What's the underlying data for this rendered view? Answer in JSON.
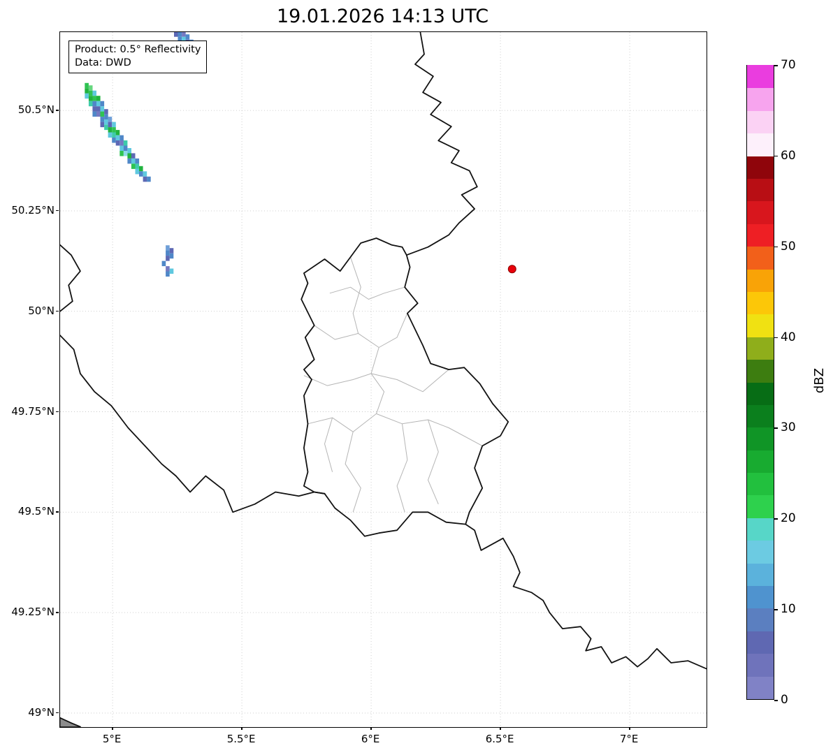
{
  "title": "19.01.2026 14:13 UTC",
  "annotation": {
    "product": "Product: 0.5° Reflectivity",
    "source": "Data: DWD"
  },
  "axes": {
    "lon_range": [
      4.797,
      7.297
    ],
    "lat_range": [
      48.965,
      50.695
    ],
    "x_ticks": [
      {
        "label": "5°E",
        "lon": 5.0
      },
      {
        "label": "5.5°E",
        "lon": 5.5
      },
      {
        "label": "6°E",
        "lon": 6.0
      },
      {
        "label": "6.5°E",
        "lon": 6.5
      },
      {
        "label": "7°E",
        "lon": 7.0
      }
    ],
    "y_ticks": [
      {
        "label": "50.5°N",
        "lat": 50.5
      },
      {
        "label": "50.25°N",
        "lat": 50.25
      },
      {
        "label": "50°N",
        "lat": 50.0
      },
      {
        "label": "49.75°N",
        "lat": 49.75
      },
      {
        "label": "49.5°N",
        "lat": 49.5
      },
      {
        "label": "49.25°N",
        "lat": 49.25
      },
      {
        "label": "49°N",
        "lat": 49.0
      }
    ]
  },
  "colorbar": {
    "label": "dBZ",
    "min": 0,
    "max": 70,
    "ticks": [
      0,
      10,
      20,
      30,
      40,
      50,
      60,
      70
    ],
    "segment_colors_bottom_to_top": [
      "#8082c6",
      "#6f73bb",
      "#5f68b2",
      "#5b7fc0",
      "#4f93cf",
      "#5bb2dc",
      "#6ccbe2",
      "#57d6c8",
      "#2ed14d",
      "#22c03e",
      "#18ab30",
      "#109526",
      "#0b7f1d",
      "#076d15",
      "#3d7d10",
      "#8fae1b",
      "#f0e112",
      "#fcc708",
      "#f9a307",
      "#f2601a",
      "#ee1f24",
      "#d8161d",
      "#b80e14",
      "#8f050b",
      "#fdf0fb",
      "#fbd2f4",
      "#f7a4ee",
      "#ea3ddf"
    ]
  },
  "map": {
    "radar_marker": {
      "lon": 6.545,
      "lat": 50.105,
      "color": "#e8000b",
      "edge": "#8b0000"
    },
    "country_borders": [
      [
        [
          6.19,
          50.695
        ],
        [
          6.205,
          50.64
        ],
        [
          6.17,
          50.615
        ],
        [
          6.24,
          50.585
        ],
        [
          6.2,
          50.545
        ],
        [
          6.27,
          50.52
        ],
        [
          6.23,
          50.49
        ],
        [
          6.31,
          50.46
        ],
        [
          6.26,
          50.425
        ],
        [
          6.34,
          50.4
        ],
        [
          6.31,
          50.37
        ],
        [
          6.38,
          50.35
        ],
        [
          6.41,
          50.31
        ],
        [
          6.35,
          50.29
        ],
        [
          6.4,
          50.255
        ],
        [
          6.34,
          50.22
        ],
        [
          6.3,
          50.19
        ],
        [
          6.22,
          50.16
        ],
        [
          6.137,
          50.14
        ]
      ],
      [
        [
          6.02,
          50.182
        ],
        [
          6.08,
          50.165
        ],
        [
          6.12,
          50.16
        ],
        [
          6.137,
          50.14
        ],
        [
          6.15,
          50.11
        ],
        [
          6.13,
          50.06
        ],
        [
          6.18,
          50.02
        ],
        [
          6.14,
          49.995
        ],
        [
          6.17,
          49.955
        ],
        [
          6.2,
          49.915
        ],
        [
          6.23,
          49.87
        ],
        [
          6.3,
          49.855
        ],
        [
          6.36,
          49.86
        ],
        [
          6.42,
          49.82
        ],
        [
          6.47,
          49.77
        ],
        [
          6.53,
          49.725
        ],
        [
          6.5,
          49.69
        ],
        [
          6.43,
          49.665
        ],
        [
          6.4,
          49.61
        ],
        [
          6.43,
          49.56
        ],
        [
          6.38,
          49.5
        ],
        [
          6.365,
          49.47
        ],
        [
          6.29,
          49.475
        ],
        [
          6.22,
          49.5
        ],
        [
          6.16,
          49.5
        ],
        [
          6.1,
          49.455
        ],
        [
          6.03,
          49.448
        ],
        [
          5.975,
          49.44
        ],
        [
          5.92,
          49.48
        ],
        [
          5.89,
          49.495
        ],
        [
          5.86,
          49.51
        ],
        [
          5.82,
          49.546
        ],
        [
          5.78,
          49.55
        ],
        [
          5.74,
          49.565
        ],
        [
          5.755,
          49.6
        ],
        [
          5.74,
          49.66
        ],
        [
          5.755,
          49.72
        ],
        [
          5.74,
          49.79
        ],
        [
          5.77,
          49.83
        ],
        [
          5.74,
          49.855
        ],
        [
          5.78,
          49.88
        ],
        [
          5.745,
          49.935
        ],
        [
          5.78,
          49.965
        ],
        [
          5.73,
          50.03
        ],
        [
          5.755,
          50.07
        ],
        [
          5.74,
          50.095
        ],
        [
          5.82,
          50.13
        ],
        [
          5.88,
          50.1
        ],
        [
          5.92,
          50.135
        ],
        [
          5.96,
          50.17
        ],
        [
          6.02,
          50.182
        ]
      ],
      [
        [
          4.797,
          49.94
        ],
        [
          4.85,
          49.905
        ],
        [
          4.875,
          49.845
        ],
        [
          4.93,
          49.8
        ],
        [
          4.995,
          49.765
        ],
        [
          5.06,
          49.71
        ],
        [
          5.125,
          49.665
        ],
        [
          5.19,
          49.62
        ],
        [
          5.245,
          49.59
        ],
        [
          5.3,
          49.55
        ],
        [
          5.36,
          49.59
        ],
        [
          5.43,
          49.555
        ],
        [
          5.465,
          49.5
        ],
        [
          5.55,
          49.52
        ],
        [
          5.63,
          49.55
        ],
        [
          5.72,
          49.54
        ],
        [
          5.78,
          49.55
        ],
        [
          5.82,
          49.546
        ]
      ],
      [
        [
          4.797,
          50.165
        ],
        [
          4.84,
          50.14
        ],
        [
          4.875,
          50.1
        ],
        [
          4.83,
          50.065
        ],
        [
          4.845,
          50.025
        ],
        [
          4.797,
          50.0
        ]
      ],
      [
        [
          6.365,
          49.47
        ],
        [
          6.4,
          49.455
        ],
        [
          6.425,
          49.405
        ],
        [
          6.51,
          49.435
        ],
        [
          6.55,
          49.39
        ],
        [
          6.575,
          49.35
        ],
        [
          6.55,
          49.315
        ],
        [
          6.62,
          49.3
        ],
        [
          6.665,
          49.28
        ],
        [
          6.69,
          49.25
        ],
        [
          6.74,
          49.21
        ],
        [
          6.81,
          49.215
        ],
        [
          6.85,
          49.185
        ],
        [
          6.83,
          49.155
        ],
        [
          6.89,
          49.165
        ],
        [
          6.93,
          49.125
        ],
        [
          6.985,
          49.14
        ],
        [
          7.03,
          49.115
        ],
        [
          7.07,
          49.135
        ],
        [
          7.105,
          49.16
        ],
        [
          7.16,
          49.125
        ],
        [
          7.225,
          49.13
        ],
        [
          7.297,
          49.11
        ]
      ],
      [
        [
          4.797,
          48.988
        ],
        [
          4.84,
          48.975
        ],
        [
          4.875,
          48.9657
        ]
      ]
    ],
    "corner_patch": [
      [
        4.797,
        48.988
      ],
      [
        4.875,
        48.9657
      ],
      [
        4.797,
        48.9657
      ]
    ],
    "canton_borders": [
      [
        [
          5.78,
          49.965
        ],
        [
          5.86,
          49.93
        ],
        [
          5.95,
          49.945
        ],
        [
          6.03,
          49.91
        ],
        [
          6.1,
          49.935
        ],
        [
          6.14,
          49.995
        ]
      ],
      [
        [
          5.92,
          50.135
        ],
        [
          5.96,
          50.06
        ],
        [
          5.93,
          49.995
        ],
        [
          5.95,
          49.945
        ]
      ],
      [
        [
          6.03,
          49.91
        ],
        [
          6.0,
          49.845
        ],
        [
          6.05,
          49.8
        ],
        [
          6.02,
          49.745
        ]
      ],
      [
        [
          5.74,
          49.84
        ],
        [
          5.83,
          49.815
        ],
        [
          5.93,
          49.83
        ],
        [
          6.0,
          49.845
        ],
        [
          6.1,
          49.83
        ],
        [
          6.2,
          49.8
        ],
        [
          6.3,
          49.855
        ]
      ],
      [
        [
          5.755,
          49.72
        ],
        [
          5.85,
          49.735
        ],
        [
          5.93,
          49.7
        ],
        [
          6.02,
          49.745
        ],
        [
          6.12,
          49.72
        ],
        [
          6.22,
          49.73
        ],
        [
          6.3,
          49.71
        ],
        [
          6.43,
          49.665
        ]
      ],
      [
        [
          5.93,
          49.7
        ],
        [
          5.9,
          49.62
        ],
        [
          5.96,
          49.56
        ],
        [
          5.93,
          49.5
        ]
      ],
      [
        [
          6.12,
          49.72
        ],
        [
          6.14,
          49.63
        ],
        [
          6.1,
          49.565
        ],
        [
          6.13,
          49.5
        ]
      ],
      [
        [
          6.22,
          49.73
        ],
        [
          6.26,
          49.65
        ],
        [
          6.22,
          49.58
        ],
        [
          6.26,
          49.52
        ]
      ],
      [
        [
          5.85,
          49.735
        ],
        [
          5.82,
          49.67
        ],
        [
          5.85,
          49.6
        ]
      ],
      [
        [
          5.84,
          50.045
        ],
        [
          5.92,
          50.06
        ],
        [
          5.99,
          50.03
        ],
        [
          6.05,
          50.045
        ],
        [
          6.13,
          50.06
        ]
      ]
    ],
    "echoes": [
      [
        4.9,
        50.562,
        "#2fc352"
      ],
      [
        4.9,
        50.549,
        "#21b33f"
      ],
      [
        4.9,
        50.536,
        "#5fc8df"
      ],
      [
        4.915,
        50.556,
        "#66d77e"
      ],
      [
        4.915,
        50.543,
        "#2fc352"
      ],
      [
        4.915,
        50.53,
        "#21b33f"
      ],
      [
        4.915,
        50.517,
        "#3ecbaa"
      ],
      [
        4.93,
        50.543,
        "#5fc8df"
      ],
      [
        4.93,
        50.53,
        "#2fc352"
      ],
      [
        4.93,
        50.517,
        "#4f87c8"
      ],
      [
        4.93,
        50.504,
        "#5d68b4"
      ],
      [
        4.93,
        50.491,
        "#4f87c8"
      ],
      [
        4.945,
        50.53,
        "#21b33f"
      ],
      [
        4.945,
        50.517,
        "#5fc8df"
      ],
      [
        4.945,
        50.504,
        "#5d68b4"
      ],
      [
        4.945,
        50.491,
        "#7579c1"
      ],
      [
        4.96,
        50.517,
        "#4f87c8"
      ],
      [
        4.96,
        50.504,
        "#5fc8df"
      ],
      [
        4.96,
        50.491,
        "#2fc352"
      ],
      [
        4.96,
        50.478,
        "#4f87c8"
      ],
      [
        4.96,
        50.465,
        "#5d68b4"
      ],
      [
        4.975,
        50.497,
        "#5d68b4"
      ],
      [
        4.975,
        50.484,
        "#4f87c8"
      ],
      [
        4.975,
        50.471,
        "#5fc8df"
      ],
      [
        4.975,
        50.458,
        "#3ecbaa"
      ],
      [
        4.99,
        50.478,
        "#6f9fd8"
      ],
      [
        4.99,
        50.465,
        "#5d68b4"
      ],
      [
        4.99,
        50.452,
        "#21b33f"
      ],
      [
        4.99,
        50.439,
        "#5fc8df"
      ],
      [
        5.005,
        50.465,
        "#5fc8df"
      ],
      [
        5.005,
        50.452,
        "#2fc352"
      ],
      [
        5.005,
        50.439,
        "#3ecbaa"
      ],
      [
        5.005,
        50.426,
        "#4f87c8"
      ],
      [
        5.02,
        50.445,
        "#21b33f"
      ],
      [
        5.02,
        50.432,
        "#5fc8df"
      ],
      [
        5.02,
        50.419,
        "#5d68b4"
      ],
      [
        5.035,
        50.432,
        "#4f87c8"
      ],
      [
        5.035,
        50.419,
        "#7579c1"
      ],
      [
        5.035,
        50.406,
        "#5fc8df"
      ],
      [
        5.035,
        50.393,
        "#2fc352"
      ],
      [
        5.05,
        50.419,
        "#3ecbaa"
      ],
      [
        5.05,
        50.406,
        "#4f87c8"
      ],
      [
        5.05,
        50.393,
        "#8edbe9"
      ],
      [
        5.065,
        50.4,
        "#5fc8df"
      ],
      [
        5.065,
        50.387,
        "#21b33f"
      ],
      [
        5.065,
        50.374,
        "#4f87c8"
      ],
      [
        5.08,
        50.387,
        "#5d68b4"
      ],
      [
        5.08,
        50.374,
        "#5fc8df"
      ],
      [
        5.08,
        50.361,
        "#2fc352"
      ],
      [
        5.095,
        50.374,
        "#4f87c8"
      ],
      [
        5.095,
        50.361,
        "#3ecbaa"
      ],
      [
        5.095,
        50.348,
        "#5fc8df"
      ],
      [
        5.11,
        50.355,
        "#21b33f"
      ],
      [
        5.11,
        50.342,
        "#4f87c8"
      ],
      [
        5.125,
        50.342,
        "#5fc8df"
      ],
      [
        5.125,
        50.329,
        "#5d68b4"
      ],
      [
        5.14,
        50.329,
        "#4f87c8"
      ],
      [
        5.245,
        50.69,
        "#5d68b4"
      ],
      [
        5.26,
        50.69,
        "#4f87c8"
      ],
      [
        5.275,
        50.69,
        "#7579c1"
      ],
      [
        5.26,
        50.677,
        "#4f87c8"
      ],
      [
        5.275,
        50.677,
        "#5fc8df"
      ],
      [
        5.29,
        50.683,
        "#4f87c8"
      ],
      [
        5.29,
        50.67,
        "#5d68b4"
      ],
      [
        5.305,
        50.67,
        "#4f87c8"
      ],
      [
        5.32,
        50.663,
        "#5d68b4"
      ],
      [
        5.335,
        50.657,
        "#6f9fd8"
      ],
      [
        5.305,
        50.657,
        "#5fc8df"
      ],
      [
        5.213,
        50.158,
        "#6f9fd8"
      ],
      [
        5.213,
        50.145,
        "#4f87c8"
      ],
      [
        5.228,
        50.151,
        "#5d68b4"
      ],
      [
        5.213,
        50.132,
        "#5d68b4"
      ],
      [
        5.228,
        50.138,
        "#4f87c8"
      ],
      [
        5.198,
        50.119,
        "#4f87c8"
      ],
      [
        5.213,
        50.106,
        "#7579c1"
      ],
      [
        5.213,
        50.093,
        "#4f87c8"
      ],
      [
        5.228,
        50.1,
        "#5fc8df"
      ]
    ]
  }
}
